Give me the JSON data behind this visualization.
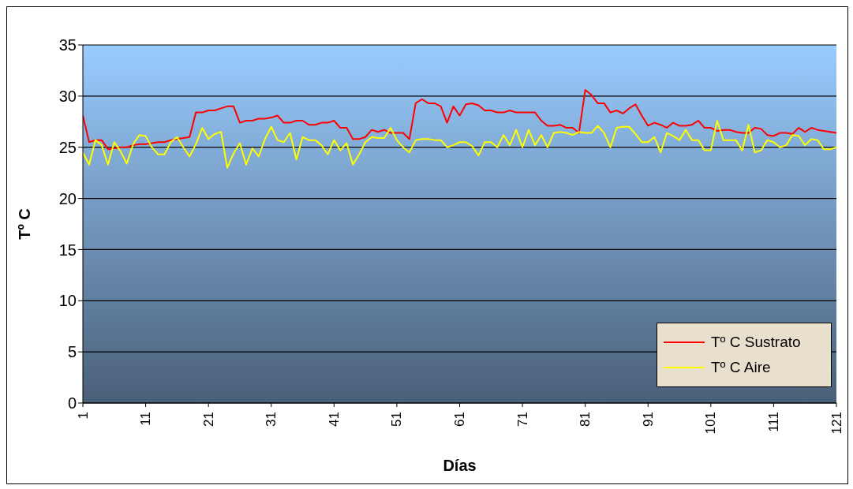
{
  "chart_data": {
    "type": "line",
    "xlabel": "Días",
    "ylabel": "Tº C",
    "x": [
      1,
      2,
      3,
      4,
      5,
      6,
      7,
      8,
      9,
      10,
      11,
      12,
      13,
      14,
      15,
      16,
      17,
      18,
      19,
      20,
      21,
      22,
      23,
      24,
      25,
      26,
      27,
      28,
      29,
      30,
      31,
      32,
      33,
      34,
      35,
      36,
      37,
      38,
      39,
      40,
      41,
      42,
      43,
      44,
      45,
      46,
      47,
      48,
      49,
      50,
      51,
      52,
      53,
      54,
      55,
      56,
      57,
      58,
      59,
      60,
      61,
      62,
      63,
      64,
      65,
      66,
      67,
      68,
      69,
      70,
      71,
      72,
      73,
      74,
      75,
      76,
      77,
      78,
      79,
      80,
      81,
      82,
      83,
      84,
      85,
      86,
      87,
      88,
      89,
      90,
      91,
      92,
      93,
      94,
      95,
      96,
      97,
      98,
      99,
      100,
      101,
      102,
      103,
      104,
      105,
      106,
      107,
      108,
      109,
      110,
      111,
      112,
      113,
      114,
      115,
      116,
      117,
      118,
      119,
      120,
      121
    ],
    "series": [
      {
        "name": "Tº C Sustrato",
        "color": "#ff0000",
        "values": [
          28.1,
          25.5,
          25.7,
          25.7,
          24.8,
          24.9,
          25.0,
          25.0,
          25.2,
          25.3,
          25.3,
          25.4,
          25.5,
          25.5,
          25.7,
          25.8,
          25.9,
          26.0,
          28.4,
          28.4,
          28.6,
          28.6,
          28.8,
          29.0,
          29.0,
          27.4,
          27.6,
          27.6,
          27.8,
          27.8,
          27.9,
          28.1,
          27.4,
          27.4,
          27.6,
          27.6,
          27.2,
          27.2,
          27.4,
          27.4,
          27.6,
          26.9,
          26.9,
          25.8,
          25.8,
          26.0,
          26.7,
          26.5,
          26.7,
          26.4,
          26.4,
          26.4,
          25.8,
          29.3,
          29.7,
          29.3,
          29.3,
          29.0,
          27.4,
          29.0,
          28.1,
          29.2,
          29.3,
          29.1,
          28.6,
          28.6,
          28.4,
          28.4,
          28.6,
          28.4,
          28.4,
          28.4,
          28.4,
          27.6,
          27.1,
          27.1,
          27.2,
          26.9,
          26.9,
          26.4,
          30.6,
          30.1,
          29.3,
          29.3,
          28.4,
          28.6,
          28.3,
          28.8,
          29.2,
          28.1,
          27.1,
          27.4,
          27.2,
          26.9,
          27.4,
          27.1,
          27.1,
          27.2,
          27.6,
          26.9,
          26.9,
          26.6,
          26.7,
          26.7,
          26.5,
          26.4,
          26.4,
          26.9,
          26.8,
          26.2,
          26.1,
          26.4,
          26.4,
          26.3,
          26.9,
          26.5,
          26.9,
          26.7,
          26.6,
          26.5,
          26.4
        ]
      },
      {
        "name": "Tº C Aire",
        "color": "#ffff00",
        "values": [
          24.5,
          23.3,
          25.7,
          25.2,
          23.3,
          25.5,
          24.6,
          23.4,
          25.3,
          26.2,
          26.1,
          25.0,
          24.3,
          24.3,
          25.5,
          26.0,
          25.0,
          24.1,
          25.3,
          26.9,
          25.8,
          26.3,
          26.5,
          23.0,
          24.4,
          25.4,
          23.3,
          24.9,
          24.1,
          25.8,
          27.0,
          25.7,
          25.5,
          26.4,
          23.8,
          26.0,
          25.7,
          25.7,
          25.2,
          24.3,
          25.7,
          24.7,
          25.4,
          23.3,
          24.3,
          25.5,
          26.0,
          25.9,
          25.9,
          26.9,
          25.7,
          25.0,
          24.5,
          25.7,
          25.8,
          25.8,
          25.7,
          25.7,
          25.0,
          25.2,
          25.5,
          25.5,
          25.1,
          24.2,
          25.5,
          25.5,
          25.0,
          26.2,
          25.2,
          26.7,
          25.0,
          26.7,
          25.2,
          26.2,
          25.0,
          26.4,
          26.5,
          26.4,
          26.2,
          26.5,
          26.4,
          26.4,
          27.1,
          26.4,
          25.0,
          26.9,
          27.0,
          27.0,
          26.3,
          25.5,
          25.5,
          26.0,
          24.5,
          26.4,
          26.1,
          25.7,
          26.7,
          25.7,
          25.7,
          24.7,
          24.7,
          27.6,
          25.7,
          25.7,
          25.7,
          24.7,
          27.2,
          24.5,
          24.7,
          25.7,
          25.5,
          25.0,
          25.2,
          26.2,
          26.1,
          25.2,
          25.8,
          25.7,
          24.8,
          24.8,
          25.0
        ]
      }
    ],
    "xlim": [
      1,
      121
    ],
    "xticks": [
      1,
      11,
      21,
      31,
      41,
      51,
      61,
      71,
      81,
      91,
      101,
      111,
      121
    ],
    "ylim": [
      0,
      35
    ],
    "yticks": [
      0,
      5,
      10,
      15,
      20,
      25,
      30,
      35
    ],
    "grid": "y",
    "legend": "bottom right",
    "marker": "none",
    "line_style": "solid"
  }
}
